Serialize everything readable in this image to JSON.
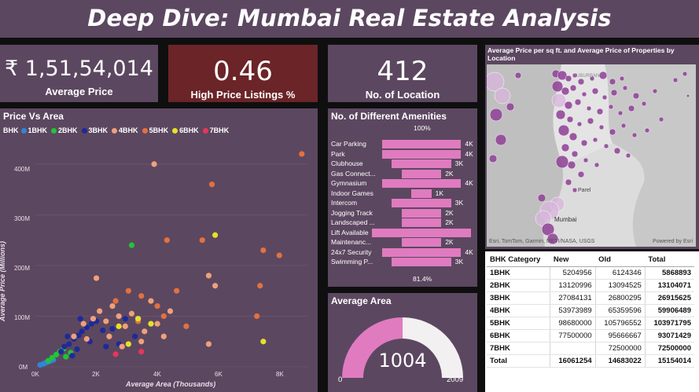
{
  "title": "Deep Dive: Mumbai Real Estate Analysis",
  "kpis": {
    "avg_price_value": "₹ 1,51,54,014",
    "avg_price_label": "Average Price",
    "high_price_value": "0.46",
    "high_price_label": "High Price Listings %",
    "locations_value": "412",
    "locations_label": "No. of Location"
  },
  "map": {
    "title": "Average Price per sq ft. and Average Price of Properties by Location",
    "labels": [
      "SUBURBAN",
      "Parel",
      "Mumbai"
    ],
    "attribution": "Esri, TomTom, Garmin, METI/NASA, USGS",
    "powered": "Powered by Esri"
  },
  "scatter": {
    "title": "Price Vs Area",
    "legend_title": "BHK",
    "legend": [
      {
        "name": "1BHK",
        "color": "#2f86d6"
      },
      {
        "name": "2BHK",
        "color": "#22c33a"
      },
      {
        "name": "3BHK",
        "color": "#1e2a9a"
      },
      {
        "name": "4BHK",
        "color": "#f0a07a"
      },
      {
        "name": "5BHK",
        "color": "#e2713f"
      },
      {
        "name": "6BHK",
        "color": "#e4e22a"
      },
      {
        "name": "7BHK",
        "color": "#e8365a"
      }
    ],
    "y_ticks": [
      "400M",
      "300M",
      "200M",
      "100M",
      "0M"
    ],
    "x_ticks": [
      "0K",
      "2K",
      "4K",
      "6K",
      "8K"
    ],
    "ylabel": "Average Price (Millions)",
    "xlabel": "Average Area (Thousands)"
  },
  "chart_data": [
    {
      "type": "scatter",
      "title": "Price Vs Area",
      "xlabel": "Average Area (Thousands)",
      "ylabel": "Average Price (Millions)",
      "xlim": [
        0,
        8500
      ],
      "ylim": [
        0,
        420
      ],
      "legend_position": "top-left",
      "series": [
        {
          "name": "1BHK",
          "points": [
            [
              150,
              4
            ],
            [
              250,
              6
            ],
            [
              320,
              8
            ],
            [
              400,
              10
            ],
            [
              480,
              12
            ],
            [
              560,
              14
            ]
          ]
        },
        {
          "name": "2BHK",
          "points": [
            [
              400,
              12
            ],
            [
              520,
              18
            ],
            [
              650,
              24
            ],
            [
              760,
              30
            ],
            [
              880,
              36
            ],
            [
              950,
              20
            ],
            [
              1100,
              28
            ],
            [
              3000,
              240
            ]
          ]
        },
        {
          "name": "3BHK",
          "points": [
            [
              900,
              40
            ],
            [
              1050,
              45
            ],
            [
              1200,
              55
            ],
            [
              1350,
              62
            ],
            [
              1450,
              70
            ],
            [
              1600,
              78
            ],
            [
              1750,
              85
            ],
            [
              1900,
              90
            ],
            [
              2100,
              72
            ],
            [
              2400,
              75
            ],
            [
              2800,
              95
            ],
            [
              3100,
              60
            ],
            [
              1300,
              35
            ],
            [
              1700,
              50
            ],
            [
              2200,
              40
            ],
            [
              1000,
              60
            ],
            [
              1400,
              95
            ],
            [
              800,
              30
            ],
            [
              2600,
              45
            ],
            [
              1150,
              22
            ]
          ]
        },
        {
          "name": "4BHK",
          "points": [
            [
              1200,
              60
            ],
            [
              1500,
              85
            ],
            [
              1800,
              95
            ],
            [
              2000,
              110
            ],
            [
              2200,
              90
            ],
            [
              2400,
              120
            ],
            [
              2600,
              100
            ],
            [
              2800,
              80
            ],
            [
              3000,
              105
            ],
            [
              3200,
              95
            ],
            [
              3400,
              70
            ],
            [
              3600,
              130
            ],
            [
              3800,
              85
            ],
            [
              4000,
              60
            ],
            [
              4200,
              110
            ],
            [
              1900,
              175
            ],
            [
              3700,
              400
            ],
            [
              5400,
              180
            ],
            [
              5600,
              160
            ],
            [
              5400,
              45
            ],
            [
              2300,
              60
            ],
            [
              3300,
              50
            ],
            [
              2700,
              40
            ],
            [
              1600,
              55
            ]
          ]
        },
        {
          "name": "5BHK",
          "points": [
            [
              2500,
              130
            ],
            [
              2900,
              150
            ],
            [
              3300,
              140
            ],
            [
              3800,
              120
            ],
            [
              4000,
              100
            ],
            [
              4400,
              150
            ],
            [
              4700,
              80
            ],
            [
              5200,
              250
            ],
            [
              5500,
              360
            ],
            [
              4100,
              250
            ],
            [
              7100,
              230
            ],
            [
              7600,
              220
            ],
            [
              8300,
              420
            ],
            [
              7000,
              160
            ],
            [
              6900,
              100
            ],
            [
              3200,
              90
            ]
          ]
        },
        {
          "name": "6BHK",
          "points": [
            [
              2600,
              80
            ],
            [
              3200,
              95
            ],
            [
              3600,
              85
            ],
            [
              5600,
              260
            ],
            [
              7100,
              50
            ],
            [
              2900,
              45
            ]
          ]
        },
        {
          "name": "7BHK",
          "points": [
            [
              2500,
              25
            ],
            [
              3300,
              30
            ]
          ]
        }
      ]
    },
    {
      "type": "bar",
      "title": "No. of Different Amenities",
      "top_label": "100%",
      "bottom_label": "81.4%",
      "categories": [
        "Car Parking",
        "Park",
        "Clubhouse",
        "Gas Connect...",
        "Gymnasium",
        "Indoor Games",
        "Intercom",
        "Jogging Track",
        "Landscaped ...",
        "Lift Available",
        "Maintenanc...",
        "24x7 Security",
        "Swimming P..."
      ],
      "values": [
        4000,
        4000,
        3000,
        2000,
        4000,
        1000,
        3000,
        2000,
        2000,
        5000,
        2000,
        4000,
        3000
      ],
      "value_labels": [
        "4K",
        "4K",
        "3K",
        "2K",
        "4K",
        "1K",
        "3K",
        "2K",
        "2K",
        "",
        "2K",
        "4K",
        "3K"
      ]
    },
    {
      "type": "gauge",
      "title": "Average Area",
      "value": 1004,
      "min": 0,
      "max": 2009,
      "value_label": "1004",
      "min_label": "0",
      "max_label": "2009"
    },
    {
      "type": "table",
      "title": "BHK Category",
      "columns": [
        "BHK Category",
        "New",
        "Old",
        "Total"
      ],
      "rows": [
        [
          "1BHK",
          "5204956",
          "6124346",
          "5868893"
        ],
        [
          "2BHK",
          "13120996",
          "13094525",
          "13104071"
        ],
        [
          "3BHK",
          "27084131",
          "26800295",
          "26915625"
        ],
        [
          "4BHK",
          "53973989",
          "65359596",
          "59906489"
        ],
        [
          "5BHK",
          "98680000",
          "105796552",
          "103971795"
        ],
        [
          "6BHK",
          "77500000",
          "95666667",
          "93071429"
        ],
        [
          "7BHK",
          "",
          "72500000",
          "72500000"
        ]
      ],
      "total": [
        "Total",
        "16061254",
        "14683022",
        "15154014"
      ]
    }
  ],
  "colors": {
    "panel": "#5c4760",
    "kpi_red": "#6b2427",
    "bar": "#e07bc0",
    "gauge_fill": "#e07bc0",
    "gauge_track": "#f2f0f0",
    "map_bubble": "#9b3f9e"
  }
}
